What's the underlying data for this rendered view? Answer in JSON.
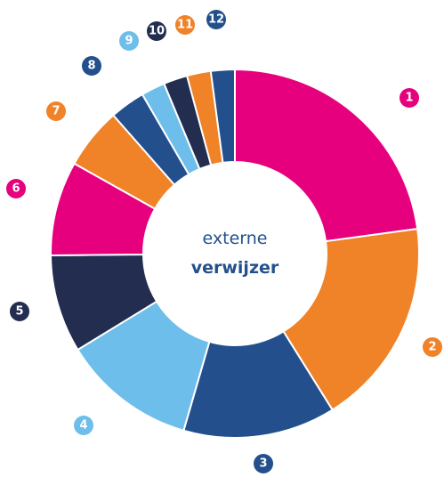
{
  "chart_data": {
    "type": "donut",
    "center_text": [
      "externe",
      "verwijzer"
    ],
    "categories": [
      "1",
      "2",
      "3",
      "4",
      "5",
      "6",
      "7",
      "8",
      "9",
      "10",
      "11",
      "12"
    ],
    "values": [
      22.9,
      18.3,
      13.4,
      11.8,
      8.6,
      8.3,
      5.4,
      3.1,
      2.1,
      2.1,
      2.1,
      2.1
    ],
    "colors": [
      "#e6007e",
      "#f08228",
      "#23508c",
      "#6ebeeb",
      "#232d50",
      "#e6007e",
      "#f08228",
      "#23508c",
      "#6ebeeb",
      "#232d50",
      "#f08228",
      "#23508c"
    ]
  }
}
